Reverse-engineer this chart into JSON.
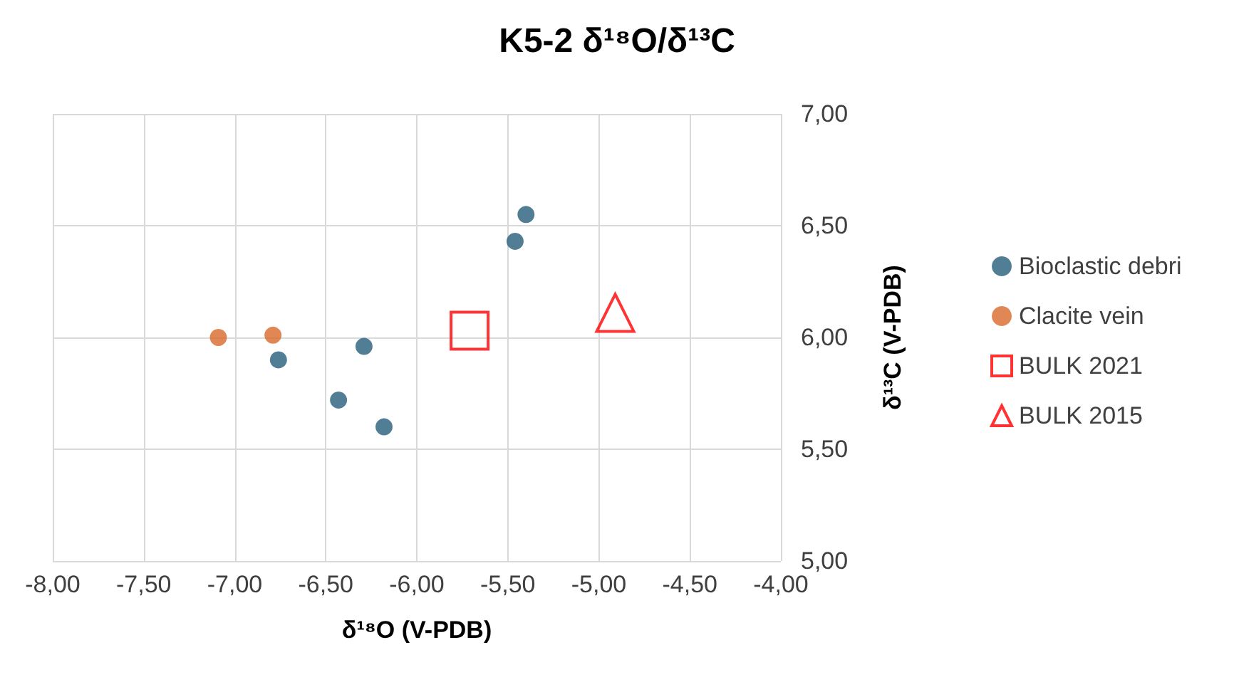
{
  "chart_data": {
    "type": "scatter",
    "title": "K5-2 δ¹⁸O/δ¹³C",
    "xlabel": "δ¹⁸O (V-PDB)",
    "ylabel": "δ¹³C (V-PDB)",
    "series": [
      {
        "name": "Bioclastic debri",
        "color": "#255e79",
        "marker": "circle",
        "x": [
          -5.4,
          -5.46,
          -6.29,
          -6.76,
          -6.43,
          -6.18
        ],
        "values": [
          6.55,
          6.43,
          5.96,
          5.9,
          5.72,
          5.6
        ]
      },
      {
        "name": "Clacite vein",
        "color": "#d9692a",
        "marker": "circle",
        "x": [
          -7.09,
          -6.79
        ],
        "values": [
          6.0,
          6.01
        ]
      },
      {
        "name": "BULK 2021",
        "color": "#ff0000",
        "marker": "square",
        "x": [
          -5.71
        ],
        "values": [
          6.03
        ]
      },
      {
        "name": "BULK 2015",
        "color": "#ff0000",
        "marker": "triangle",
        "x": [
          -4.91
        ],
        "values": [
          6.11
        ]
      }
    ],
    "xlim": [
      -8,
      -4
    ],
    "xticks": [
      {
        "value": -8,
        "label": "-8,00"
      },
      {
        "value": -7.5,
        "label": "-7,50"
      },
      {
        "value": -7,
        "label": "-7,00"
      },
      {
        "value": -6.5,
        "label": "-6,50"
      },
      {
        "value": -6,
        "label": "-6,00"
      },
      {
        "value": -5.5,
        "label": "-5,50"
      },
      {
        "value": -5,
        "label": "-5,00"
      },
      {
        "value": -4.5,
        "label": "-4,50"
      },
      {
        "value": -4,
        "label": "-4,00"
      }
    ],
    "ylim": [
      5,
      7
    ],
    "yticks": [
      {
        "value": 5,
        "label": "5,00"
      },
      {
        "value": 5.5,
        "label": "5,50"
      },
      {
        "value": 6,
        "label": "6,00"
      },
      {
        "value": 6.5,
        "label": "6,50"
      },
      {
        "value": 7,
        "label": "7,00"
      }
    ],
    "grid": true,
    "legend": "right"
  }
}
